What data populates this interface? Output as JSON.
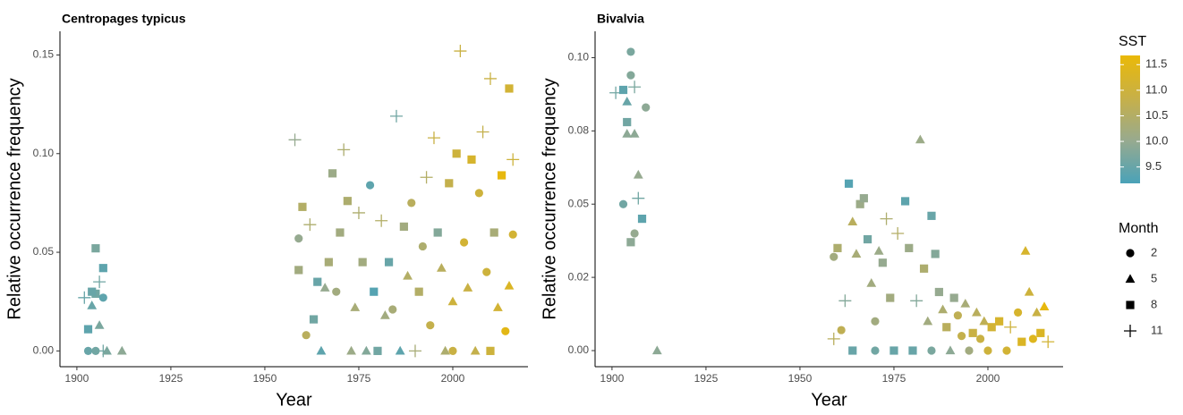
{
  "chart_data": [
    {
      "type": "scatter",
      "title": "Centropages typicus",
      "xlabel": "Year",
      "ylabel": "Relative occurrence frequency",
      "xlim": [
        1895.5,
        2020
      ],
      "xticks": [
        1900,
        1925,
        1950,
        1975,
        2000
      ],
      "ylim": [
        -0.008,
        0.162
      ],
      "yticks": [
        {
          "value": 0,
          "label": "0.00"
        },
        0.05,
        {
          "value": 0.1,
          "label": "0.10"
        },
        0.15
      ],
      "x": [
        1902,
        1903,
        1904,
        1905,
        1905,
        1906,
        1907,
        1907,
        1906,
        1903,
        1905,
        1907,
        1908,
        1912,
        1904,
        1958,
        1959,
        1959,
        1960,
        1961,
        1962,
        1963,
        1964,
        1965,
        1966,
        1967,
        1968,
        1969,
        1970,
        1971,
        1972,
        1973,
        1974,
        1975,
        1976,
        1977,
        1978,
        1979,
        1980,
        1981,
        1982,
        1983,
        1984,
        1985,
        1986,
        1987,
        1988,
        1989,
        1990,
        1991,
        1992,
        1993,
        1994,
        1995,
        1996,
        1997,
        1998,
        1999,
        2000,
        2001,
        2002,
        2003,
        2004,
        2005,
        2006,
        2007,
        2008,
        2009,
        2010,
        2011,
        2012,
        2013,
        2014,
        2015,
        2015,
        2016,
        2016,
        2010,
        2000
      ],
      "y": [
        0.027,
        0.011,
        0.023,
        0.029,
        0.052,
        0.035,
        0.042,
        0.027,
        0.013,
        0,
        0,
        0,
        0,
        0,
        0.03,
        0.107,
        0.057,
        0.041,
        0.073,
        0.008,
        0.064,
        0.016,
        0.035,
        0,
        0.032,
        0.045,
        0.09,
        0.03,
        0.06,
        0.102,
        0.076,
        0,
        0.022,
        0.07,
        0.045,
        0,
        0.084,
        0.03,
        0,
        0.066,
        0.018,
        0.045,
        0.021,
        0.119,
        0,
        0.063,
        0.038,
        0.075,
        0,
        0.03,
        0.053,
        0.088,
        0.013,
        0.108,
        0.06,
        0.042,
        0,
        0.085,
        0.025,
        0.1,
        0.152,
        0.055,
        0.032,
        0.097,
        0,
        0.08,
        0.111,
        0.04,
        0.138,
        0.06,
        0.022,
        0.089,
        0.01,
        0.133,
        0.033,
        0.097,
        0.059,
        0,
        0
      ],
      "month": [
        11,
        8,
        5,
        8,
        8,
        11,
        8,
        2,
        5,
        2,
        2,
        11,
        5,
        5,
        8,
        11,
        2,
        8,
        8,
        2,
        11,
        8,
        8,
        5,
        5,
        8,
        8,
        2,
        8,
        11,
        8,
        5,
        5,
        11,
        8,
        5,
        2,
        8,
        8,
        11,
        5,
        8,
        2,
        11,
        5,
        8,
        5,
        2,
        11,
        8,
        2,
        11,
        2,
        11,
        8,
        5,
        5,
        8,
        5,
        8,
        11,
        2,
        5,
        8,
        5,
        2,
        11,
        2,
        11,
        8,
        5,
        8,
        2,
        8,
        5,
        11,
        2,
        8,
        2
      ],
      "sst": [
        9.5,
        9.4,
        9.5,
        9.6,
        9.7,
        9.6,
        9.4,
        9.4,
        9.7,
        9.5,
        9.6,
        9.6,
        9.7,
        9.9,
        9.5,
        10.0,
        10.0,
        10.2,
        10.5,
        10.6,
        10.4,
        9.6,
        9.5,
        9.4,
        10.0,
        10.3,
        10.1,
        10.2,
        10.2,
        10.4,
        10.4,
        10.1,
        10.3,
        10.4,
        10.2,
        9.8,
        9.4,
        9.3,
        9.6,
        10.5,
        10.2,
        9.5,
        10.3,
        9.6,
        9.4,
        10.2,
        10.5,
        10.6,
        10.3,
        10.5,
        10.4,
        10.5,
        10.8,
        10.9,
        9.8,
        10.6,
        10.4,
        10.8,
        11.0,
        11.0,
        10.9,
        11.1,
        10.9,
        11.2,
        10.8,
        11.0,
        10.8,
        11.0,
        10.9,
        10.3,
        11.1,
        11.6,
        11.5,
        11.1,
        11.3,
        11.0,
        11.1,
        11.0,
        10.9
      ]
    },
    {
      "type": "scatter",
      "title": "Bivalvia",
      "xlabel": "Year",
      "ylabel": "Relative occurrence frequency",
      "xlim": [
        1895.5,
        2020
      ],
      "xticks": [
        1900,
        1925,
        1950,
        1975,
        2000
      ],
      "ylim": [
        -0.0055,
        0.109
      ],
      "yticks": [
        {
          "value": 0,
          "label": "0.00"
        },
        {
          "value": 0.025,
          "label": "0.02"
        },
        0.05,
        {
          "value": 0.075,
          "label": "0.08"
        },
        {
          "value": 0.1,
          "label": "0.10"
        }
      ],
      "x": [
        1901,
        1903,
        1903,
        1904,
        1904,
        1905,
        1905,
        1906,
        1906,
        1907,
        1907,
        1908,
        1909,
        1905,
        1906,
        1904,
        1912,
        1959,
        1959,
        1960,
        1961,
        1962,
        1963,
        1964,
        1964,
        1965,
        1966,
        1967,
        1968,
        1969,
        1970,
        1971,
        1972,
        1973,
        1974,
        1975,
        1976,
        1978,
        1979,
        1980,
        1981,
        1982,
        1983,
        1984,
        1985,
        1986,
        1987,
        1988,
        1989,
        1990,
        1991,
        1992,
        1993,
        1994,
        1995,
        1996,
        1997,
        1998,
        1999,
        2000,
        2001,
        2003,
        2005,
        2006,
        2008,
        2009,
        2010,
        2011,
        2012,
        2013,
        2014,
        2015,
        2016,
        1970,
        1985
      ],
      "y": [
        0.088,
        0.089,
        0.05,
        0.085,
        0.078,
        0.102,
        0.094,
        0.09,
        0.074,
        0.06,
        0.052,
        0.045,
        0.083,
        0.037,
        0.04,
        0.074,
        0,
        0.032,
        0.004,
        0.035,
        0.007,
        0.017,
        0.057,
        0.044,
        0,
        0.033,
        0.05,
        0.052,
        0.038,
        0.023,
        0.01,
        0.034,
        0.03,
        0.045,
        0.018,
        0,
        0.04,
        0.051,
        0.035,
        0,
        0.017,
        0.072,
        0.028,
        0.01,
        0.046,
        0.033,
        0.02,
        0.014,
        0.008,
        0,
        0.018,
        0.012,
        0.005,
        0.016,
        0,
        0.006,
        0.013,
        0.004,
        0.01,
        0,
        0.008,
        0.01,
        0,
        0.008,
        0.013,
        0.003,
        0.034,
        0.02,
        0.004,
        0.013,
        0.006,
        0.015,
        0.003,
        0,
        0
      ],
      "month": [
        11,
        8,
        2,
        5,
        8,
        2,
        2,
        11,
        5,
        5,
        11,
        8,
        2,
        8,
        2,
        5,
        5,
        2,
        11,
        8,
        2,
        11,
        8,
        5,
        8,
        5,
        8,
        8,
        8,
        5,
        2,
        5,
        8,
        11,
        8,
        8,
        11,
        8,
        8,
        8,
        11,
        5,
        8,
        5,
        8,
        8,
        8,
        5,
        8,
        5,
        8,
        2,
        2,
        5,
        2,
        8,
        5,
        2,
        5,
        2,
        8,
        8,
        2,
        11,
        2,
        8,
        5,
        5,
        2,
        5,
        8,
        5,
        11,
        2,
        2
      ],
      "sst": [
        9.6,
        9.4,
        9.6,
        9.5,
        9.6,
        9.7,
        9.8,
        9.7,
        9.9,
        10.0,
        9.6,
        9.4,
        9.9,
        9.9,
        10.0,
        9.9,
        9.9,
        10.2,
        10.6,
        10.4,
        10.7,
        9.8,
        9.3,
        10.6,
        9.5,
        10.3,
        10.1,
        10.0,
        9.6,
        10.2,
        10.2,
        10.1,
        10.0,
        10.4,
        10.2,
        9.5,
        10.5,
        9.4,
        10.1,
        9.5,
        9.8,
        10.1,
        10.4,
        10.2,
        9.5,
        9.8,
        10.0,
        10.4,
        10.6,
        9.9,
        10.0,
        10.7,
        10.8,
        10.3,
        10.2,
        10.9,
        10.6,
        10.9,
        10.7,
        11.0,
        11.1,
        11.2,
        11.1,
        11.0,
        11.2,
        11.3,
        11.2,
        11.0,
        11.4,
        10.9,
        11.3,
        11.6,
        11.1,
        9.6,
        9.7
      ]
    }
  ],
  "legend": {
    "color_title": "SST",
    "color_lim": [
      9.18,
      11.68
    ],
    "colors": [
      "#4aa2b8",
      "#97aa8f",
      "#c7b048",
      "#eab908"
    ],
    "color_ticks": [
      9.5,
      {
        "value": 10,
        "label": "10.0"
      },
      10.5,
      {
        "value": 11,
        "label": "11.0"
      },
      11.5
    ],
    "shape_title": "Month",
    "months": [
      2,
      5,
      8,
      11
    ],
    "shapes": [
      "circle",
      "triangle",
      "square",
      "plus"
    ]
  }
}
